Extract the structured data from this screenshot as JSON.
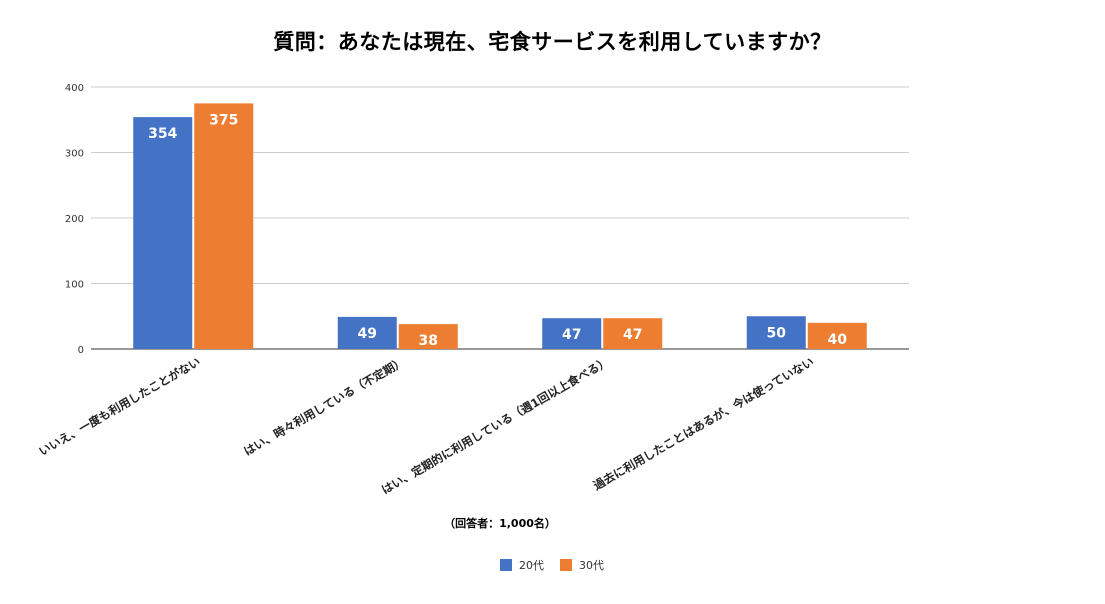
{
  "chart_data": {
    "type": "bar",
    "title": "質問：あなたは現在、宅食サービスを利用していますか？",
    "categories": [
      "いいえ、一度も利用したことがない",
      "はい、時々利用している（不定期）",
      "はい、定期的に利用している（週1回以上食べる）",
      "過去に利用したことはあるが、今は使っていない"
    ],
    "series": [
      {
        "name": "20代",
        "color": "#4472C4",
        "values": [
          354,
          49,
          47,
          50
        ]
      },
      {
        "name": "30代",
        "color": "#ED7D31",
        "values": [
          375,
          38,
          47,
          40
        ]
      }
    ],
    "ylim": [
      0,
      400
    ],
    "yticks": [
      0,
      100,
      200,
      300,
      400
    ],
    "grid": true,
    "legend": "bottom",
    "note": "（回答者：1,000名）"
  }
}
